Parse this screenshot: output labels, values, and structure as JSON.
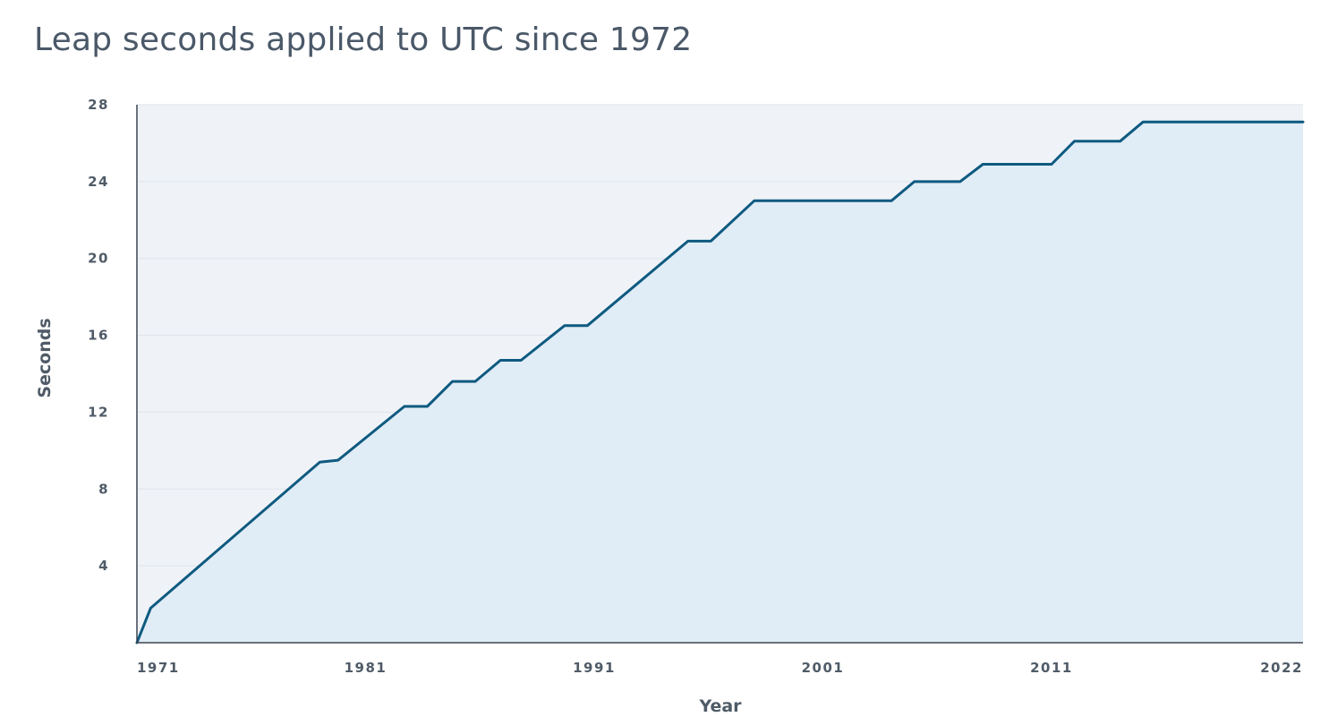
{
  "chart_data": {
    "type": "area",
    "title": "Leap seconds applied to UTC since 1972",
    "xlabel": "Year",
    "ylabel": "Seconds",
    "xlim": [
      1971,
      2022
    ],
    "ylim": [
      0,
      28
    ],
    "x_ticks": [
      "1971",
      "1981",
      "1991",
      "2001",
      "2011",
      "2022"
    ],
    "y_ticks": [
      "4",
      "8",
      "12",
      "16",
      "20",
      "24",
      "28"
    ],
    "grid": true,
    "legend": "none",
    "series": [
      {
        "x": [
          1971.0,
          1971.6,
          1979.0,
          1979.8,
          1982.7,
          1983.7,
          1984.8,
          1985.8,
          1986.9,
          1987.8,
          1989.7,
          1990.7,
          1995.1,
          1996.1,
          1998.0,
          2001.0,
          2004.0,
          2005.0,
          2007.0,
          2008.0,
          2011.0,
          2012.0,
          2014.0,
          2015.0,
          2022.0
        ],
        "values": [
          0,
          1.8,
          9.4,
          9.5,
          12.3,
          12.3,
          13.6,
          13.6,
          14.7,
          14.7,
          16.5,
          16.5,
          20.9,
          20.9,
          23.0,
          23.0,
          23.0,
          24.0,
          24.0,
          24.9,
          24.9,
          26.1,
          26.1,
          27.1,
          27.1
        ]
      }
    ],
    "colors": {
      "line": "#0e5a80",
      "area_fill": "#e0ecf6",
      "plot_background": "#eff3f8",
      "gridline": "#dfe4ea",
      "axis": "#3d4550",
      "text": "#4f5b67"
    }
  }
}
